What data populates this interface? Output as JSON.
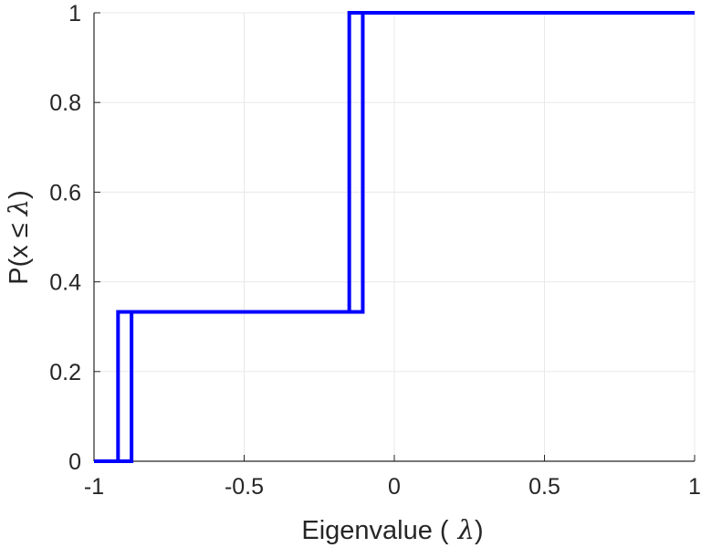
{
  "chart_data": {
    "type": "line",
    "title": "",
    "xlabel": "Eigenvalue ( λ)",
    "xlabel_prefix": "Eigenvalue (",
    "xlabel_symbol": "λ",
    "xlabel_suffix": ")",
    "ylabel": "P(x ≤ λ)",
    "ylabel_prefix": "P(x ≤",
    "ylabel_symbol": "λ",
    "ylabel_suffix": ")",
    "xlim": [
      -1,
      1
    ],
    "ylim": [
      0,
      1
    ],
    "xticks": [
      "-1",
      "-0.5",
      "0",
      "0.5",
      "1"
    ],
    "xtick_values": [
      -1,
      -0.5,
      0,
      0.5,
      1
    ],
    "yticks": [
      "0",
      "0.2",
      "0.4",
      "0.6",
      "0.8",
      "1"
    ],
    "ytick_values": [
      0,
      0.2,
      0.4,
      0.6,
      0.8,
      1
    ],
    "grid": true,
    "line_color": "#0000ff",
    "series": [
      {
        "x": [
          -1,
          -0.92,
          -0.92,
          -0.15,
          -0.15,
          1
        ],
        "y": [
          0,
          0,
          0.333,
          0.333,
          1,
          1
        ]
      },
      {
        "x": [
          -1,
          -0.875,
          -0.875,
          -0.105,
          -0.105,
          1
        ],
        "y": [
          0,
          0,
          0.333,
          0.333,
          1,
          1
        ]
      }
    ]
  }
}
